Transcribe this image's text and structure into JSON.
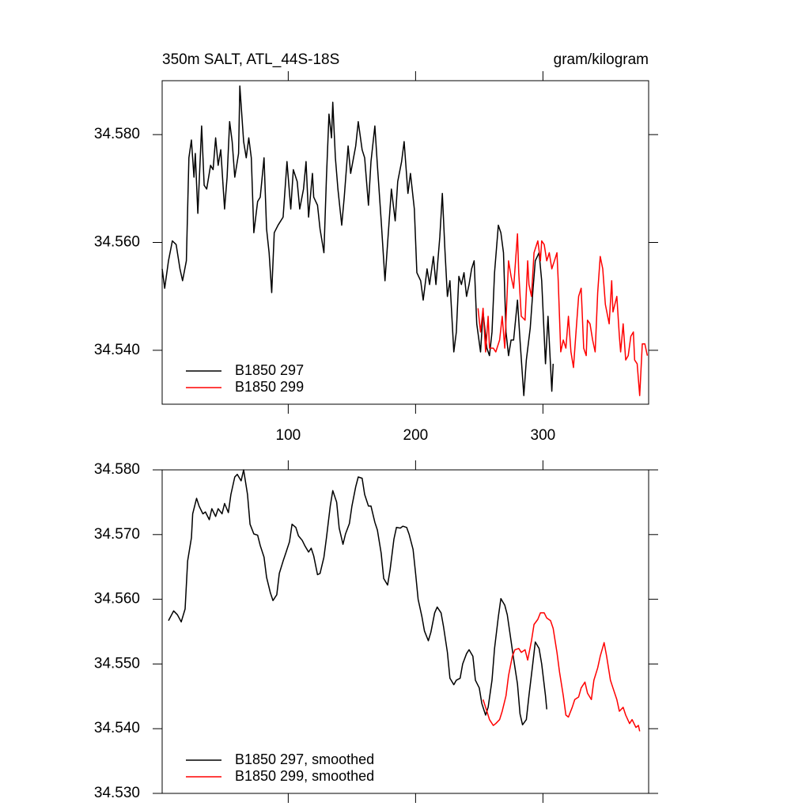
{
  "chart_data": [
    {
      "type": "line",
      "title": "350m SALT, ATL_44S-18S",
      "units": "gram/kilogram",
      "xlim": [
        1,
        383
      ],
      "xticks": [
        100,
        200,
        300
      ],
      "xtick_labels": true,
      "ylim": [
        34.53,
        34.59
      ],
      "yticks": [
        {
          "value": 34.58,
          "label": "34.580"
        },
        {
          "value": 34.56,
          "label": "34.560"
        },
        {
          "value": 34.54,
          "label": "34.540"
        }
      ],
      "legend": "lower left",
      "series": [
        {
          "name": "B1850 297",
          "color": "#000000",
          "x": [
            1,
            3,
            6,
            9,
            12,
            15,
            17,
            20,
            22,
            24,
            26,
            27,
            29,
            32,
            34,
            36,
            39,
            41,
            43,
            45,
            47,
            50,
            52,
            54,
            56,
            58,
            61,
            62,
            65,
            67,
            69,
            71,
            73,
            76,
            78,
            81,
            83,
            85,
            87,
            89,
            92,
            96,
            99,
            102,
            104,
            107,
            109,
            112,
            114,
            116,
            119,
            120,
            123,
            125,
            128,
            130,
            132,
            134,
            135,
            137,
            139,
            142,
            144,
            147,
            149,
            153,
            155,
            158,
            160,
            163,
            165,
            168,
            170,
            173,
            175,
            176,
            179,
            181,
            184,
            186,
            189,
            191,
            194,
            196,
            199,
            201,
            204,
            206,
            209,
            211,
            214,
            216,
            219,
            221,
            223,
            225,
            227,
            230,
            232,
            234,
            236,
            238,
            240,
            242,
            244,
            246,
            248,
            251,
            253,
            256,
            258,
            260,
            262,
            265,
            267,
            269,
            271,
            273,
            275,
            277,
            280,
            282,
            285,
            287,
            290,
            292,
            294,
            297,
            299,
            302,
            304,
            307,
            308
          ],
          "values": [
            34.5551,
            34.5515,
            34.5566,
            34.5603,
            34.5596,
            34.5551,
            34.5529,
            34.5566,
            34.5757,
            34.579,
            34.5721,
            34.5765,
            34.5654,
            34.5816,
            34.5706,
            34.5699,
            34.5743,
            34.5735,
            34.5794,
            34.5743,
            34.5772,
            34.5662,
            34.5721,
            34.5824,
            34.5787,
            34.5721,
            34.5765,
            34.589,
            34.5787,
            34.5757,
            34.5794,
            34.5757,
            34.5618,
            34.5676,
            34.5684,
            34.5757,
            34.5625,
            34.5581,
            34.5507,
            34.5618,
            34.5632,
            34.5647,
            34.575,
            34.5662,
            34.5735,
            34.5713,
            34.5662,
            34.5699,
            34.575,
            34.5647,
            34.5728,
            34.5684,
            34.5669,
            34.5625,
            34.5581,
            34.5721,
            34.5838,
            34.5794,
            34.586,
            34.5757,
            34.5699,
            34.5632,
            34.5684,
            34.5779,
            34.5728,
            34.5779,
            34.5824,
            34.5772,
            34.5757,
            34.5669,
            34.575,
            34.5816,
            34.5743,
            34.564,
            34.5566,
            34.5529,
            34.5632,
            34.5699,
            34.564,
            34.5713,
            34.575,
            34.5787,
            34.5691,
            34.5728,
            34.5662,
            34.5544,
            34.5529,
            34.5493,
            34.5551,
            34.5522,
            34.5574,
            34.5522,
            34.561,
            34.5691,
            34.5588,
            34.55,
            34.5529,
            34.5397,
            34.5434,
            34.5537,
            34.5522,
            34.5544,
            34.55,
            34.5522,
            34.5551,
            34.5566,
            34.5449,
            34.5397,
            34.5471,
            34.5404,
            34.539,
            34.5434,
            34.5544,
            34.5632,
            34.5618,
            34.5581,
            34.5434,
            34.539,
            34.5419,
            34.5419,
            34.5493,
            34.5419,
            34.5316,
            34.5382,
            34.5441,
            34.5507,
            34.5566,
            34.5581,
            34.5529,
            34.5375,
            34.5463,
            34.5324,
            34.5375
          ]
        },
        {
          "name": "B1850 299",
          "color": "#ff0000",
          "x": [
            249,
            251,
            253,
            255,
            257,
            258,
            261,
            263,
            266,
            268,
            270,
            271,
            273,
            275,
            277,
            280,
            281,
            283,
            286,
            288,
            289,
            291,
            293,
            296,
            298,
            299,
            301,
            303,
            305,
            307,
            309,
            311,
            312,
            314,
            316,
            318,
            320,
            322,
            324,
            326,
            328,
            330,
            332,
            334,
            335,
            337,
            339,
            341,
            343,
            345,
            347,
            349,
            352,
            354,
            355,
            358,
            360,
            361,
            363,
            365,
            367,
            369,
            371,
            372,
            374,
            376,
            378,
            380,
            382
          ],
          "values": [
            34.5478,
            34.5434,
            34.5478,
            34.5397,
            34.5463,
            34.5404,
            34.5404,
            34.5397,
            34.5419,
            34.5463,
            34.5404,
            34.5456,
            34.5566,
            34.5537,
            34.5515,
            34.5616,
            34.5544,
            34.5463,
            34.5456,
            34.5566,
            34.5522,
            34.55,
            34.5581,
            34.5603,
            34.5566,
            34.5603,
            34.5596,
            34.5566,
            34.5581,
            34.5551,
            34.5566,
            34.5581,
            34.5529,
            34.5397,
            34.5419,
            34.5404,
            34.5463,
            34.5397,
            34.5368,
            34.5434,
            34.55,
            34.5515,
            34.5404,
            34.539,
            34.5456,
            34.5449,
            34.5419,
            34.5397,
            34.5507,
            34.5574,
            34.5551,
            34.5485,
            34.5449,
            34.5529,
            34.5471,
            34.55,
            34.5426,
            34.5397,
            34.5449,
            34.5382,
            34.539,
            34.5426,
            34.5434,
            34.5382,
            34.5375,
            34.5316,
            34.5412,
            34.5412,
            34.539
          ]
        }
      ]
    },
    {
      "type": "line",
      "xlim": [
        1,
        383
      ],
      "xticks": [
        100,
        200,
        300
      ],
      "xtick_labels": false,
      "ylim": [
        34.53,
        34.58
      ],
      "yticks": [
        {
          "value": 34.58,
          "label": "34.580"
        },
        {
          "value": 34.57,
          "label": "34.570"
        },
        {
          "value": 34.56,
          "label": "34.560"
        },
        {
          "value": 34.55,
          "label": "34.550"
        },
        {
          "value": 34.54,
          "label": "34.540"
        },
        {
          "value": 34.53,
          "label": "34.530"
        }
      ],
      "legend": "lower left",
      "series": [
        {
          "name": "B1850 297, smoothed",
          "color": "#000000",
          "x": [
            6,
            10,
            13,
            16,
            19,
            21,
            24,
            25,
            28,
            30,
            33,
            35,
            38,
            40,
            43,
            45,
            48,
            50,
            53,
            55,
            58,
            60,
            63,
            65,
            68,
            70,
            73,
            76,
            78,
            81,
            83,
            86,
            88,
            91,
            93,
            96,
            98,
            101,
            103,
            106,
            108,
            111,
            113,
            116,
            118,
            120,
            123,
            125,
            128,
            130,
            133,
            135,
            138,
            140,
            143,
            145,
            148,
            150,
            153,
            155,
            158,
            160,
            163,
            165,
            168,
            170,
            173,
            175,
            178,
            180,
            183,
            185,
            188,
            190,
            193,
            195,
            198,
            200,
            202,
            205,
            207,
            210,
            212,
            215,
            217,
            220,
            222,
            225,
            227,
            230,
            232,
            235,
            237,
            240,
            242,
            245,
            247,
            250,
            252,
            255,
            257,
            260,
            262,
            265,
            267,
            270,
            272,
            274,
            277,
            280,
            282,
            284,
            287,
            289,
            292,
            294,
            297,
            299,
            302,
            303
          ],
          "values": [
            34.5567,
            34.5582,
            34.5576,
            34.5565,
            34.5585,
            34.5659,
            34.5695,
            34.5732,
            34.5756,
            34.5744,
            34.5732,
            34.5735,
            34.5723,
            34.574,
            34.5728,
            34.574,
            34.5732,
            34.5748,
            34.5734,
            34.5762,
            34.5789,
            34.5793,
            34.5783,
            34.58,
            34.5762,
            34.5716,
            34.5701,
            34.5699,
            34.5683,
            34.5665,
            34.5634,
            34.561,
            34.5598,
            34.5607,
            34.564,
            34.5659,
            34.5671,
            34.5689,
            34.5716,
            34.5711,
            34.5698,
            34.5691,
            34.5683,
            34.5673,
            34.5679,
            34.5667,
            34.5638,
            34.564,
            34.5665,
            34.5695,
            34.5744,
            34.5768,
            34.575,
            34.571,
            34.5685,
            34.5701,
            34.5717,
            34.5744,
            34.5774,
            34.5789,
            34.5787,
            34.5762,
            34.5744,
            34.5744,
            34.5719,
            34.5707,
            34.5671,
            34.5632,
            34.5622,
            34.5646,
            34.5693,
            34.5711,
            34.571,
            34.5713,
            34.5711,
            34.57,
            34.5677,
            34.564,
            34.56,
            34.5573,
            34.5551,
            34.5536,
            34.5549,
            34.5579,
            34.5588,
            34.5579,
            34.5557,
            34.5518,
            34.5478,
            34.5468,
            34.5475,
            34.5478,
            34.55,
            34.5516,
            34.5522,
            34.5512,
            34.5475,
            34.5463,
            34.5439,
            34.5421,
            34.5433,
            34.5475,
            34.5524,
            34.5573,
            34.5601,
            34.5591,
            34.5576,
            34.5549,
            34.5508,
            34.5469,
            34.5423,
            34.5406,
            34.5414,
            34.5451,
            34.55,
            34.5534,
            34.5524,
            34.55,
            34.5451,
            34.543
          ]
        },
        {
          "name": "B1850 299, smoothed",
          "color": "#ff0000",
          "x": [
            253,
            256,
            258,
            261,
            263,
            266,
            268,
            271,
            273,
            276,
            278,
            281,
            283,
            286,
            288,
            291,
            293,
            296,
            298,
            301,
            303,
            306,
            308,
            311,
            313,
            316,
            318,
            320,
            323,
            325,
            328,
            330,
            333,
            335,
            338,
            340,
            343,
            345,
            348,
            350,
            353,
            355,
            358,
            360,
            363,
            365,
            368,
            370,
            373,
            375,
            376
          ],
          "values": [
            34.5445,
            34.5427,
            34.5414,
            34.5405,
            34.5408,
            34.5414,
            34.5427,
            34.5451,
            34.5482,
            34.5512,
            34.5522,
            34.5524,
            34.5518,
            34.5522,
            34.5506,
            34.5536,
            34.5561,
            34.5569,
            34.5579,
            34.5579,
            34.5571,
            34.5567,
            34.5555,
            34.5518,
            34.5488,
            34.5451,
            34.5421,
            34.5418,
            34.5433,
            34.5445,
            34.5449,
            34.5463,
            34.5472,
            34.5455,
            34.5445,
            34.5475,
            34.5494,
            34.5512,
            34.5533,
            34.5512,
            34.5475,
            34.5463,
            34.5445,
            34.5427,
            34.5433,
            34.5421,
            34.5408,
            34.5414,
            34.5402,
            34.5405,
            34.5396
          ]
        }
      ]
    }
  ]
}
